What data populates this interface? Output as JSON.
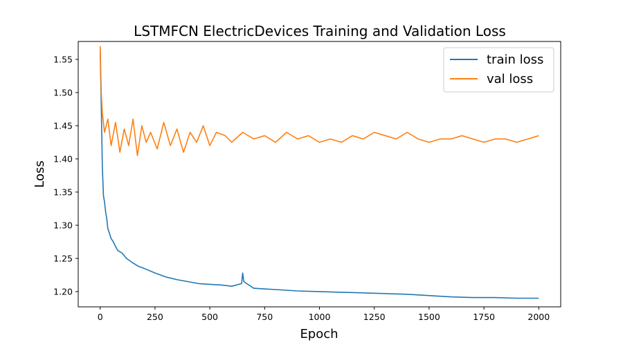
{
  "chart_data": {
    "type": "line",
    "title": "LSTMFCN ElectricDevices Training and Validation Loss",
    "xlabel": "Epoch",
    "ylabel": "Loss",
    "xlim": [
      -100,
      2100
    ],
    "ylim": [
      1.177,
      1.577
    ],
    "xticks": [
      0,
      250,
      500,
      750,
      1000,
      1250,
      1500,
      1750,
      2000
    ],
    "yticks": [
      1.2,
      1.25,
      1.3,
      1.35,
      1.4,
      1.45,
      1.5,
      1.55
    ],
    "xtick_labels": [
      "0",
      "250",
      "500",
      "750",
      "1000",
      "1250",
      "1500",
      "1750",
      "2000"
    ],
    "ytick_labels": [
      "1.20",
      "1.25",
      "1.30",
      "1.35",
      "1.40",
      "1.45",
      "1.50",
      "1.55"
    ],
    "grid": false,
    "legend_position": "upper right",
    "series": [
      {
        "name": "train loss",
        "color": "#1f77b4",
        "x": [
          0,
          5,
          10,
          15,
          20,
          25,
          30,
          35,
          40,
          50,
          60,
          70,
          80,
          100,
          120,
          150,
          175,
          200,
          250,
          300,
          350,
          400,
          450,
          500,
          550,
          600,
          645,
          650,
          655,
          700,
          750,
          800,
          900,
          1000,
          1100,
          1200,
          1300,
          1400,
          1500,
          1600,
          1700,
          1800,
          1900,
          2000
        ],
        "y": [
          1.565,
          1.48,
          1.39,
          1.345,
          1.335,
          1.32,
          1.31,
          1.295,
          1.29,
          1.28,
          1.275,
          1.268,
          1.262,
          1.258,
          1.25,
          1.243,
          1.238,
          1.235,
          1.228,
          1.222,
          1.218,
          1.215,
          1.212,
          1.211,
          1.21,
          1.208,
          1.212,
          1.228,
          1.215,
          1.205,
          1.204,
          1.203,
          1.201,
          1.2,
          1.199,
          1.198,
          1.197,
          1.196,
          1.194,
          1.192,
          1.191,
          1.191,
          1.19,
          1.19
        ]
      },
      {
        "name": "val loss",
        "color": "#ff7f0e",
        "x": [
          0,
          5,
          10,
          20,
          35,
          50,
          70,
          90,
          110,
          130,
          150,
          170,
          190,
          210,
          230,
          260,
          290,
          320,
          350,
          380,
          410,
          440,
          470,
          500,
          530,
          570,
          600,
          650,
          700,
          750,
          800,
          850,
          900,
          950,
          1000,
          1050,
          1100,
          1150,
          1200,
          1250,
          1300,
          1350,
          1400,
          1450,
          1500,
          1550,
          1600,
          1650,
          1700,
          1750,
          1800,
          1850,
          1900,
          1950,
          2000
        ],
        "y": [
          1.57,
          1.5,
          1.47,
          1.44,
          1.46,
          1.42,
          1.455,
          1.41,
          1.445,
          1.42,
          1.46,
          1.405,
          1.45,
          1.425,
          1.44,
          1.415,
          1.455,
          1.42,
          1.445,
          1.41,
          1.44,
          1.425,
          1.45,
          1.42,
          1.44,
          1.435,
          1.425,
          1.44,
          1.43,
          1.435,
          1.425,
          1.44,
          1.43,
          1.435,
          1.425,
          1.43,
          1.425,
          1.435,
          1.43,
          1.44,
          1.435,
          1.43,
          1.44,
          1.43,
          1.425,
          1.43,
          1.43,
          1.435,
          1.43,
          1.425,
          1.43,
          1.43,
          1.425,
          1.43,
          1.435
        ]
      }
    ]
  }
}
